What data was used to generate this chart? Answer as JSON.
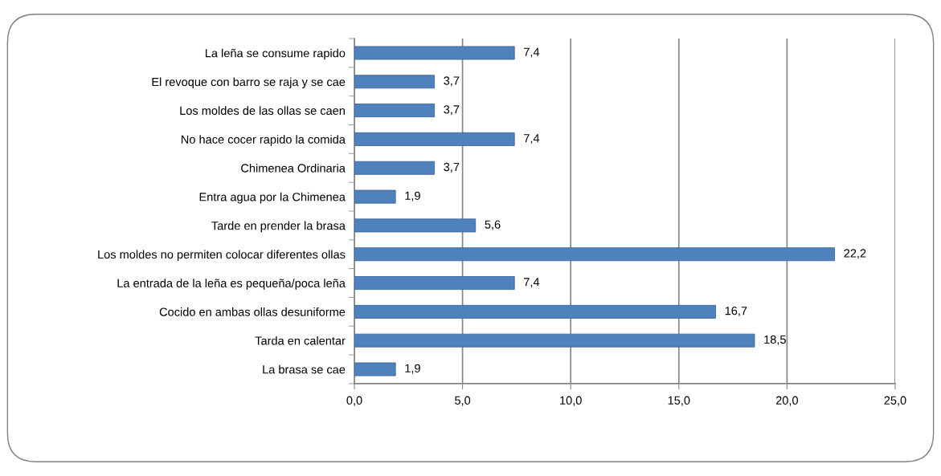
{
  "chart_data": {
    "type": "bar",
    "orientation": "horizontal",
    "categories": [
      "La leña se consume rapido",
      "El revoque con barro se raja y se cae",
      "Los moldes de las ollas se caen",
      "No hace cocer rapido la comida",
      "Chimenea Ordinaria",
      "Entra agua por la Chimenea",
      "Tarde en prender la brasa",
      "Los moldes no permiten colocar diferentes ollas",
      "La entrada de la leña es pequeña/poca leña",
      "Cocido en ambas ollas desuniforme",
      "Tarda en calentar",
      "La brasa se cae"
    ],
    "values": [
      7.4,
      3.7,
      3.7,
      7.4,
      3.7,
      1.9,
      5.6,
      22.2,
      7.4,
      16.7,
      18.5,
      1.9
    ],
    "value_labels": [
      "7,4",
      "3,7",
      "3,7",
      "7,4",
      "3,7",
      "1,9",
      "5,6",
      "22,2",
      "7,4",
      "16,7",
      "18,5",
      "1,9"
    ],
    "color": "#4f81bd",
    "xlim": [
      0,
      25
    ],
    "xticks": [
      {
        "value": 0,
        "label": "0,0"
      },
      {
        "value": 5,
        "label": "5,0"
      },
      {
        "value": 10,
        "label": "10,0"
      },
      {
        "value": 15,
        "label": "15,0"
      },
      {
        "value": 20,
        "label": "20,0"
      },
      {
        "value": 25,
        "label": "25,0"
      }
    ],
    "grid": "x",
    "legend": false
  }
}
